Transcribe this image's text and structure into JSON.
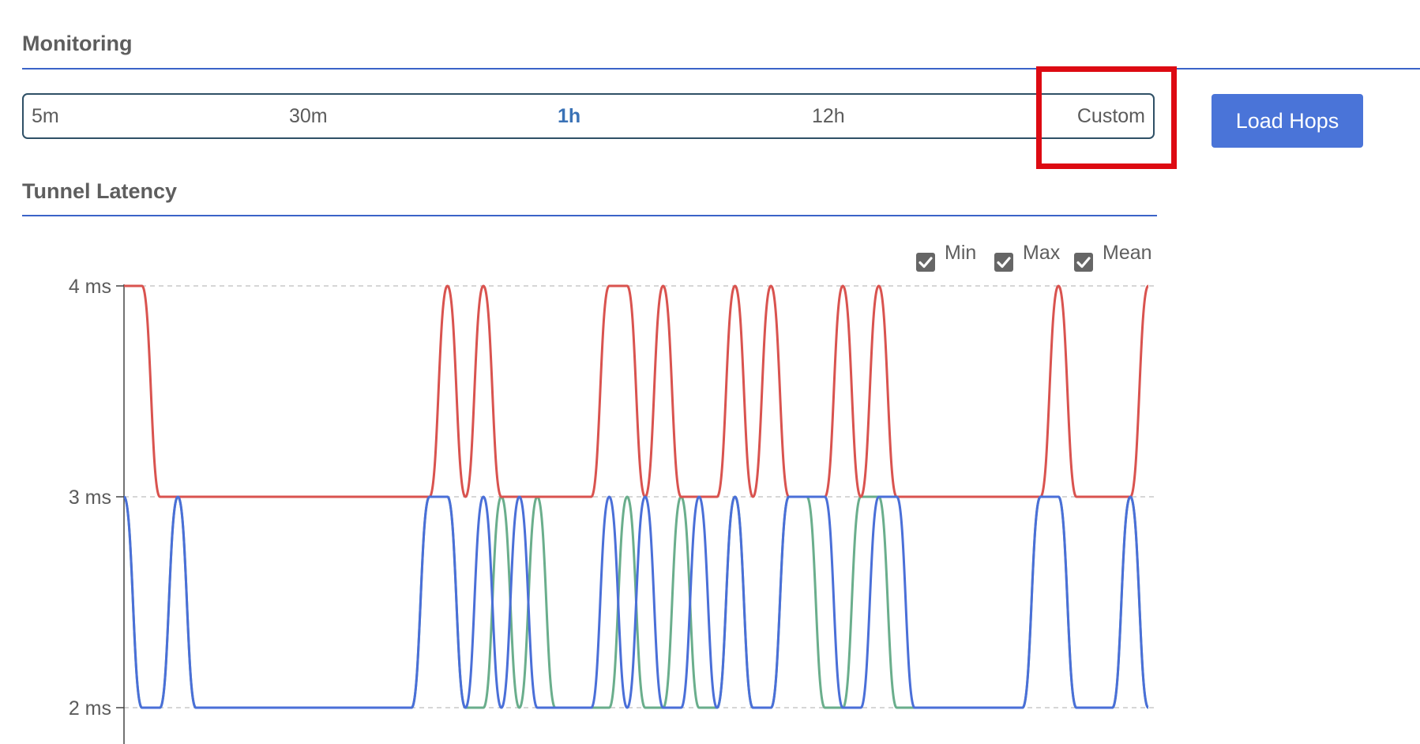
{
  "monitoring": {
    "title": "Monitoring"
  },
  "range_selector": {
    "options": [
      "5m",
      "30m",
      "1h",
      "12h",
      "Custom"
    ],
    "selected": "1h"
  },
  "load_hops_label": "Load Hops",
  "latency": {
    "title": "Tunnel Latency",
    "legend": [
      {
        "label": "Min",
        "checked": true
      },
      {
        "label": "Max",
        "checked": true
      },
      {
        "label": "Mean",
        "checked": true
      }
    ]
  },
  "colors": {
    "accent": "#3b64c8",
    "button": "#4a74d8",
    "selected_text": "#3a72b6",
    "highlight": "#dd0a12",
    "min_series": "#6aae8c",
    "max_series": "#d9534f",
    "mean_series": "#4a6fd8"
  },
  "chart_data": {
    "type": "line",
    "title": "Tunnel Latency",
    "xlabel": "",
    "ylabel": "",
    "y_ticks": [
      "2 ms",
      "3 ms",
      "4 ms"
    ],
    "ylim": [
      2,
      4
    ],
    "grid": "horizontal dashed",
    "legend_position": "top-right",
    "x": [
      0,
      1,
      2,
      3,
      4,
      5,
      6,
      7,
      8,
      9,
      10,
      11,
      12,
      13,
      14,
      15,
      16,
      17,
      18,
      19,
      20,
      21,
      22,
      23,
      24,
      25,
      26,
      27,
      28,
      29,
      30,
      31,
      32,
      33,
      34,
      35,
      36,
      37,
      38,
      39,
      40,
      41,
      42,
      43,
      44,
      45,
      46,
      47,
      48,
      49,
      50,
      51,
      52,
      53,
      54,
      55,
      56,
      57
    ],
    "series": [
      {
        "name": "Min",
        "values": [
          3,
          2,
          2,
          3,
          2,
          2,
          2,
          2,
          2,
          2,
          2,
          2,
          2,
          2,
          2,
          2,
          2,
          3,
          3,
          2,
          2,
          3,
          2,
          3,
          2,
          2,
          2,
          2,
          3,
          2,
          2,
          3,
          2,
          2,
          3,
          2,
          2,
          3,
          3,
          2,
          2,
          3,
          3,
          2,
          2,
          2,
          2,
          2,
          2,
          2,
          2,
          3,
          3,
          2,
          2,
          2,
          3,
          2
        ]
      },
      {
        "name": "Max",
        "values": [
          4,
          4,
          3,
          3,
          3,
          3,
          3,
          3,
          3,
          3,
          3,
          3,
          3,
          3,
          3,
          3,
          3,
          3,
          4,
          3,
          4,
          3,
          3,
          3,
          3,
          3,
          3,
          4,
          4,
          3,
          4,
          3,
          3,
          3,
          4,
          3,
          4,
          3,
          3,
          3,
          4,
          3,
          4,
          3,
          3,
          3,
          3,
          3,
          3,
          3,
          3,
          3,
          4,
          3,
          3,
          3,
          3,
          4
        ]
      },
      {
        "name": "Mean",
        "values": [
          3,
          2,
          2,
          3,
          2,
          2,
          2,
          2,
          2,
          2,
          2,
          2,
          2,
          2,
          2,
          2,
          2,
          3,
          3,
          2,
          3,
          2,
          3,
          2,
          2,
          2,
          2,
          3,
          2,
          3,
          2,
          2,
          3,
          2,
          3,
          2,
          2,
          3,
          3,
          3,
          2,
          2,
          3,
          3,
          2,
          2,
          2,
          2,
          2,
          2,
          2,
          3,
          3,
          2,
          2,
          2,
          3,
          2
        ]
      }
    ]
  }
}
